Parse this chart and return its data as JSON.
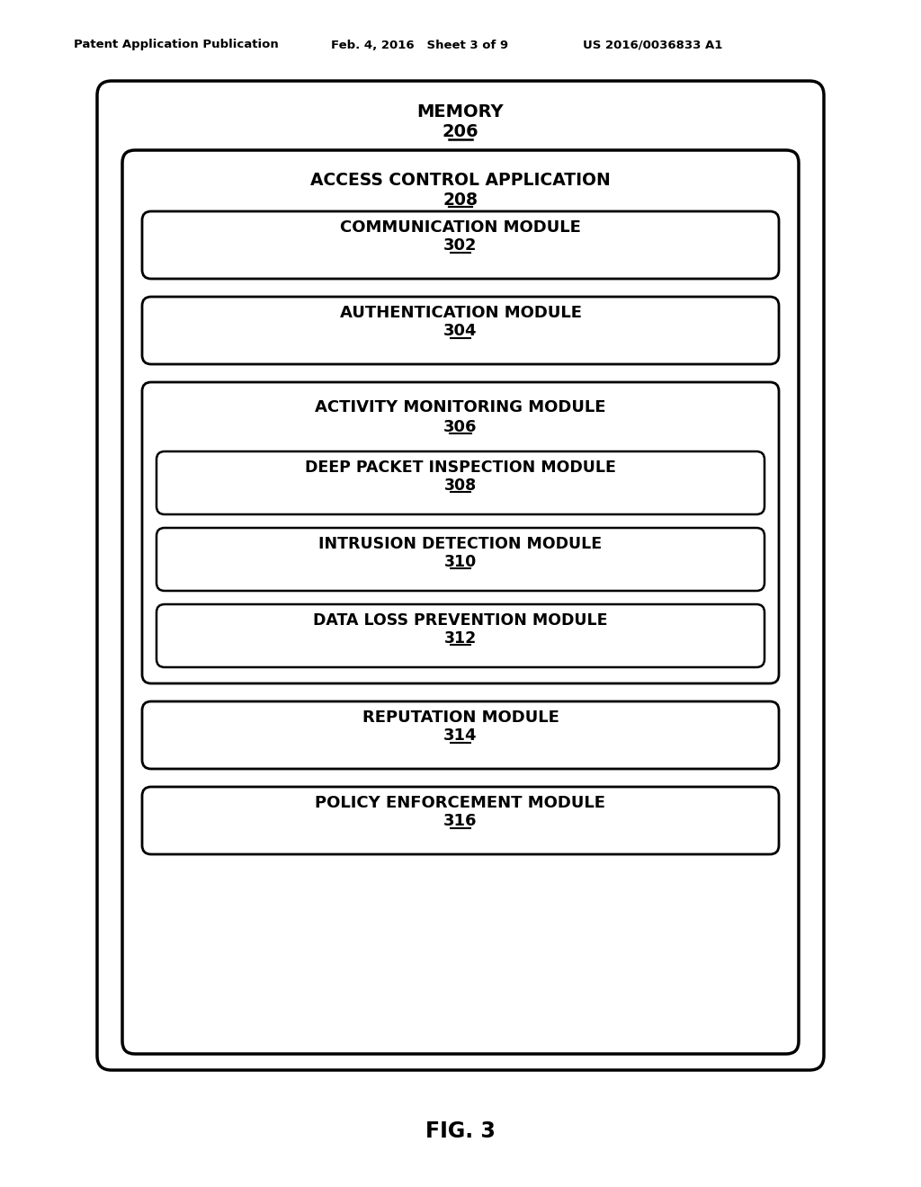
{
  "bg_color": "#ffffff",
  "header_left": "Patent Application Publication",
  "header_mid": "Feb. 4, 2016   Sheet 3 of 9",
  "header_right": "US 2016/0036833 A1",
  "caption": "FIG. 3",
  "memory_label": "MEMORY",
  "memory_num": "206",
  "aca_label": "ACCESS CONTROL APPLICATION",
  "aca_num": "208",
  "modules": [
    {
      "label": "COMMUNICATION MODULE",
      "num": "302",
      "children": []
    },
    {
      "label": "AUTHENTICATION MODULE",
      "num": "304",
      "children": []
    },
    {
      "label": "ACTIVITY MONITORING MODULE",
      "num": "306",
      "children": [
        {
          "label": "DEEP PACKET INSPECTION MODULE",
          "num": "308"
        },
        {
          "label": "INTRUSION DETECTION MODULE",
          "num": "310"
        },
        {
          "label": "DATA LOSS PREVENTION MODULE",
          "num": "312"
        }
      ]
    },
    {
      "label": "REPUTATION MODULE",
      "num": "314",
      "children": []
    },
    {
      "label": "POLICY ENFORCEMENT MODULE",
      "num": "316",
      "children": []
    }
  ]
}
